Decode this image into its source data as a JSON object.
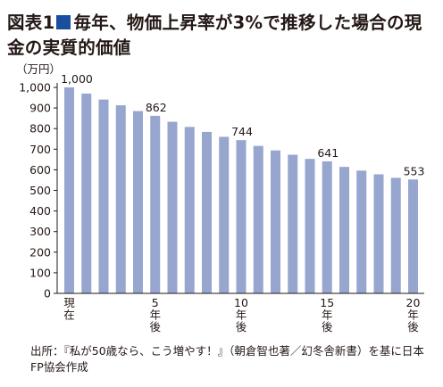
{
  "title": {
    "fig_label": "図表1",
    "text": "毎年、物価上昇率が3%で推移した場合の現金の実質的価値",
    "square_color": "#1a4fa0"
  },
  "chart_data": {
    "type": "bar",
    "unit": "（万円）",
    "x": [
      0,
      1,
      2,
      3,
      4,
      5,
      6,
      7,
      8,
      9,
      10,
      11,
      12,
      13,
      14,
      15,
      16,
      17,
      18,
      19,
      20
    ],
    "values": [
      1000,
      970,
      941,
      913,
      885,
      862,
      833,
      808,
      784,
      760,
      744,
      716,
      694,
      673,
      653,
      641,
      614,
      596,
      578,
      561,
      553
    ],
    "ylim": [
      0,
      1000
    ],
    "yticks": [
      0,
      100,
      200,
      300,
      400,
      500,
      600,
      700,
      800,
      900,
      1000
    ],
    "ytick_labels": [
      "0",
      "100",
      "200",
      "300",
      "400",
      "500",
      "600",
      "700",
      "800",
      "900",
      "1,000"
    ],
    "x_tick_labels": [
      {
        "index": 0,
        "label": "現在"
      },
      {
        "index": 5,
        "label": "5年後"
      },
      {
        "index": 10,
        "label": "10年後"
      },
      {
        "index": 15,
        "label": "15年後"
      },
      {
        "index": 20,
        "label": "20年後"
      }
    ],
    "data_labels": [
      {
        "index": 0,
        "label": "1,000"
      },
      {
        "index": 5,
        "label": "862"
      },
      {
        "index": 10,
        "label": "744"
      },
      {
        "index": 15,
        "label": "641"
      },
      {
        "index": 20,
        "label": "553"
      }
    ],
    "bar_color": "#97a6cf",
    "grid": false
  },
  "source": "出所：『私が50歳なら、こう増やす！』（朝倉智也著／幻冬舎新書）を基に日本FP協会作成"
}
